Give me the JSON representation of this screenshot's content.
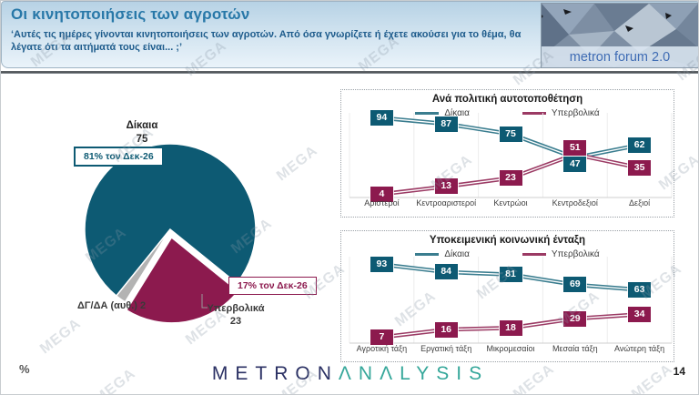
{
  "watermark": "MEGA",
  "header": {
    "title": "Οι κινητοποιήσεις των αγροτών",
    "subtitle": "‘Αυτές τις ημέρες γίνονται κινητοποιήσεις των αγροτών. Από όσα γνωρίζετε ή έχετε ακούσει για το θέμα, θα λέγατε ότι τα αιτήματά τους είναι... ;’",
    "logo_text": "metron forum 2.0"
  },
  "colors": {
    "title_blue": "#2878a8",
    "subtitle_blue": "#1e5c8c",
    "teal_series": "#0d5a73",
    "teal_line": "#3a7d8f",
    "maroon_series": "#8c1a4e",
    "maroon_line": "#9b3a64",
    "gray_slice": "#b3b3b3",
    "brand_navy": "#2b3164",
    "brand_teal": "#35a79a"
  },
  "chart_data": [
    {
      "type": "pie",
      "start_angle": 219,
      "explode_index": 1,
      "explode_offset": 9,
      "slices": [
        {
          "label": "Δίκαια",
          "value": 75,
          "color": "#0d5a73"
        },
        {
          "label": "Υπερβολικά",
          "value": 23,
          "color": "#8c1a4e"
        },
        {
          "label": "ΔΓ/ΔΑ (αυθ.)",
          "value": 2,
          "color": "#b3b3b3",
          "display": "ΔΓ/ΔΑ (αυθ.) 2"
        }
      ],
      "annotations": [
        {
          "series": "Δίκαια",
          "text": "81% τον Δεκ-26"
        },
        {
          "series": "Υπερβολικά",
          "text": "17% τον Δεκ-26"
        }
      ]
    },
    {
      "type": "line",
      "title": "Ανά πολιτική αυτοτοποθέτηση",
      "categories": [
        "Αριστεροί",
        "Κεντροαριστεροί",
        "Κεντρώοι",
        "Κεντροδεξιοί",
        "Δεξιοί"
      ],
      "series": [
        {
          "name": "Δίκαια",
          "color": "#0d5a73",
          "line_color": "#3a7d8f",
          "values": [
            94,
            87,
            75,
            47,
            62
          ]
        },
        {
          "name": "Υπερβολικά",
          "color": "#8c1a4e",
          "line_color": "#9b3a64",
          "values": [
            4,
            13,
            23,
            51,
            35
          ]
        }
      ],
      "ylim": [
        0,
        100
      ],
      "grid": "vertical",
      "legend_position": "top"
    },
    {
      "type": "line",
      "title": "Υποκειμενική κοινωνική ένταξη",
      "categories": [
        "Αγροτική τάξη",
        "Εργατική τάξη",
        "Μικρομεσαίοι",
        "Μεσαία τάξη",
        "Ανώτερη τάξη"
      ],
      "series": [
        {
          "name": "Δίκαια",
          "color": "#0d5a73",
          "line_color": "#3a7d8f",
          "values": [
            93,
            84,
            81,
            69,
            63
          ]
        },
        {
          "name": "Υπερβολικά",
          "color": "#8c1a4e",
          "line_color": "#9b3a64",
          "values": [
            7,
            16,
            18,
            29,
            34
          ]
        }
      ],
      "ylim": [
        0,
        100
      ],
      "grid": "vertical",
      "legend_position": "top"
    }
  ],
  "footer": {
    "unit_label": "%",
    "brand_primary": "METRON",
    "brand_secondary": "ΛNΛLYSIS",
    "page_number": "14"
  }
}
